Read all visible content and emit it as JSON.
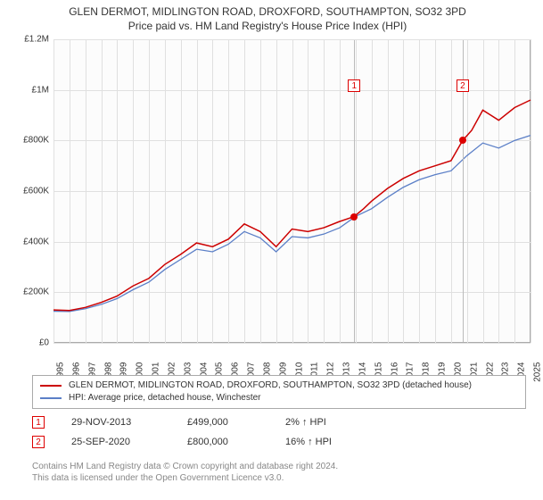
{
  "title": {
    "main": "GLEN DERMOT, MIDLINGTON ROAD, DROXFORD, SOUTHAMPTON, SO32 3PD",
    "sub": "Price paid vs. HM Land Registry's House Price Index (HPI)"
  },
  "chart": {
    "type": "line",
    "background_color": "#fcfcfc",
    "grid_color": "#e0e0e0",
    "border_color": "#aaaaaa",
    "ylim": [
      0,
      1200000
    ],
    "ytick_step": 200000,
    "y_format": "£M_short",
    "y_labels": [
      "£0",
      "£200K",
      "£400K",
      "£600K",
      "£800K",
      "£1M",
      "£1.2M"
    ],
    "xlim": [
      1995,
      2025
    ],
    "xtick_step": 1,
    "x_labels": [
      "1995",
      "1996",
      "1997",
      "1998",
      "1999",
      "2000",
      "2001",
      "2002",
      "2003",
      "2004",
      "2005",
      "2006",
      "2007",
      "2008",
      "2009",
      "2010",
      "2011",
      "2012",
      "2013",
      "2014",
      "2015",
      "2016",
      "2017",
      "2018",
      "2019",
      "2020",
      "2021",
      "2022",
      "2023",
      "2024",
      "2025"
    ],
    "series": [
      {
        "name": "property",
        "color": "#cc0000",
        "width": 1.5,
        "data": [
          [
            1995,
            130000
          ],
          [
            1996,
            128000
          ],
          [
            1997,
            140000
          ],
          [
            1998,
            160000
          ],
          [
            1999,
            185000
          ],
          [
            2000,
            225000
          ],
          [
            2001,
            255000
          ],
          [
            2002,
            310000
          ],
          [
            2003,
            350000
          ],
          [
            2004,
            395000
          ],
          [
            2005,
            380000
          ],
          [
            2006,
            410000
          ],
          [
            2007,
            470000
          ],
          [
            2008,
            440000
          ],
          [
            2009,
            380000
          ],
          [
            2010,
            450000
          ],
          [
            2011,
            440000
          ],
          [
            2012,
            455000
          ],
          [
            2013,
            480000
          ],
          [
            2013.9,
            499000
          ],
          [
            2014.5,
            530000
          ],
          [
            2015,
            560000
          ],
          [
            2016,
            610000
          ],
          [
            2017,
            650000
          ],
          [
            2018,
            680000
          ],
          [
            2019,
            700000
          ],
          [
            2020,
            720000
          ],
          [
            2020.73,
            800000
          ],
          [
            2021.3,
            840000
          ],
          [
            2022,
            920000
          ],
          [
            2023,
            880000
          ],
          [
            2024,
            930000
          ],
          [
            2025,
            960000
          ]
        ]
      },
      {
        "name": "hpi",
        "color": "#5b7fc7",
        "width": 1.3,
        "data": [
          [
            1995,
            125000
          ],
          [
            1996,
            124000
          ],
          [
            1997,
            135000
          ],
          [
            1998,
            152000
          ],
          [
            1999,
            175000
          ],
          [
            2000,
            210000
          ],
          [
            2001,
            240000
          ],
          [
            2002,
            290000
          ],
          [
            2003,
            330000
          ],
          [
            2004,
            370000
          ],
          [
            2005,
            360000
          ],
          [
            2006,
            390000
          ],
          [
            2007,
            440000
          ],
          [
            2008,
            415000
          ],
          [
            2009,
            360000
          ],
          [
            2010,
            420000
          ],
          [
            2011,
            415000
          ],
          [
            2012,
            430000
          ],
          [
            2013,
            455000
          ],
          [
            2014,
            500000
          ],
          [
            2015,
            530000
          ],
          [
            2016,
            575000
          ],
          [
            2017,
            615000
          ],
          [
            2018,
            645000
          ],
          [
            2019,
            665000
          ],
          [
            2020,
            680000
          ],
          [
            2021,
            740000
          ],
          [
            2022,
            790000
          ],
          [
            2023,
            770000
          ],
          [
            2024,
            800000
          ],
          [
            2025,
            820000
          ]
        ]
      }
    ],
    "markers": [
      {
        "label": "1",
        "x": 2013.91,
        "y": 499000
      },
      {
        "label": "2",
        "x": 2020.73,
        "y": 800000
      }
    ]
  },
  "legend": {
    "items": [
      {
        "color": "#cc0000",
        "label": "GLEN DERMOT, MIDLINGTON ROAD, DROXFORD, SOUTHAMPTON, SO32 3PD (detached house)"
      },
      {
        "color": "#5b7fc7",
        "label": "HPI: Average price, detached house, Winchester"
      }
    ]
  },
  "transactions": [
    {
      "marker": "1",
      "date": "29-NOV-2013",
      "price": "£499,000",
      "diff": "2% ↑ HPI"
    },
    {
      "marker": "2",
      "date": "25-SEP-2020",
      "price": "£800,000",
      "diff": "16% ↑ HPI"
    }
  ],
  "footer": {
    "line1": "Contains HM Land Registry data © Crown copyright and database right 2024.",
    "line2": "This data is licensed under the Open Government Licence v3.0."
  }
}
